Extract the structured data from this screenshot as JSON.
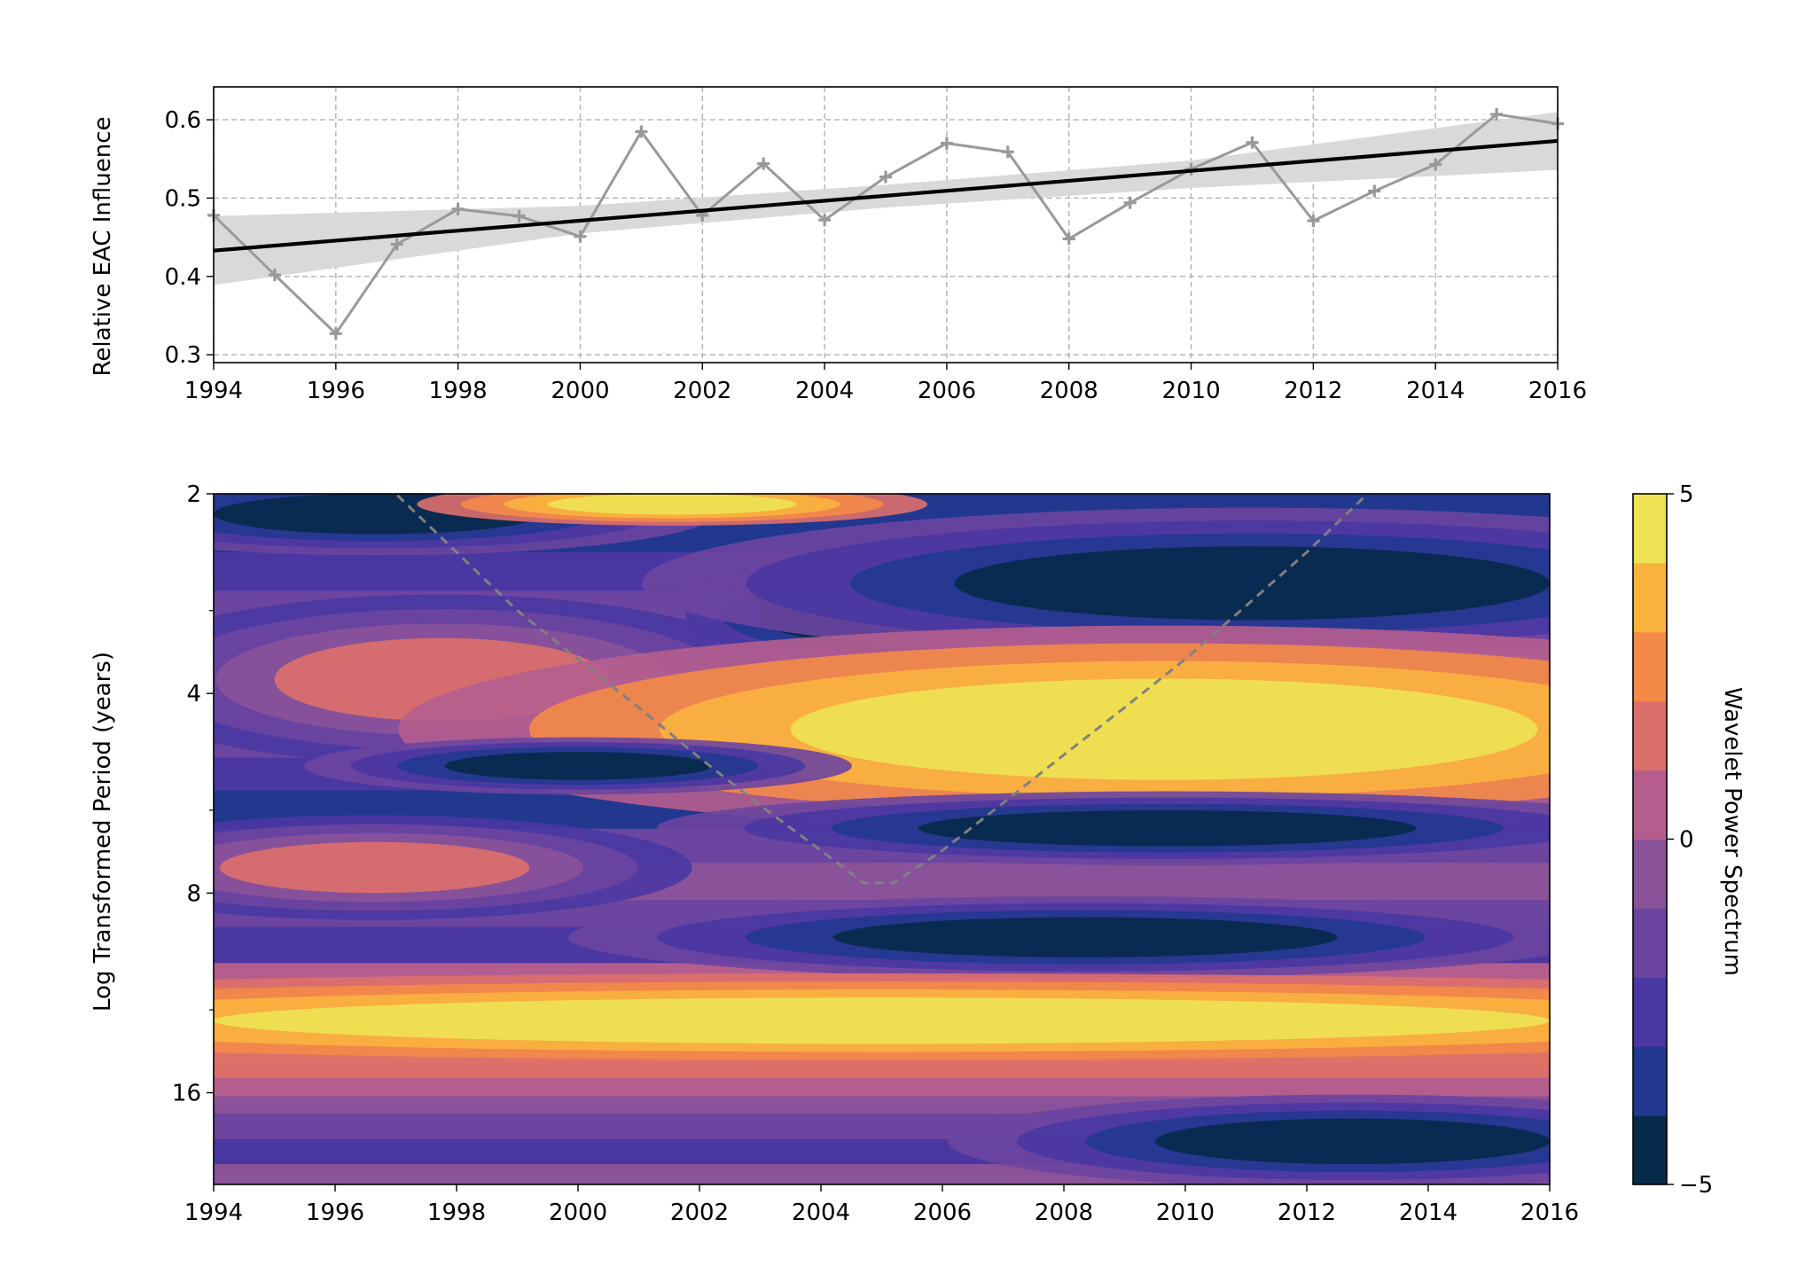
{
  "chart_data": [
    {
      "type": "line",
      "title": "",
      "xlabel": "",
      "ylabel": "Relative EAC Influence",
      "xlim": [
        1994,
        2016
      ],
      "ylim": [
        0.29,
        0.642
      ],
      "xticks": [
        "1994",
        "1996",
        "1998",
        "2000",
        "2002",
        "2004",
        "2006",
        "2008",
        "2010",
        "2012",
        "2014",
        "2016"
      ],
      "yticks": [
        "0.3",
        "0.4",
        "0.5",
        "0.6"
      ],
      "grid": true,
      "series": [
        {
          "kind": "observed",
          "color": "#999999",
          "marker": "plus",
          "x": [
            1994,
            1995,
            1996,
            1997,
            1998,
            1999,
            2000,
            2001,
            2002,
            2003,
            2004,
            2005,
            2006,
            2007,
            2008,
            2009,
            2010,
            2011,
            2012,
            2013,
            2014,
            2015,
            2016
          ],
          "y": [
            0.478,
            0.402,
            0.327,
            0.441,
            0.486,
            0.477,
            0.451,
            0.585,
            0.478,
            0.544,
            0.472,
            0.527,
            0.57,
            0.559,
            0.448,
            0.494,
            0.537,
            0.571,
            0.471,
            0.509,
            0.543,
            0.607,
            0.595
          ]
        },
        {
          "kind": "trend",
          "color": "#000000",
          "x": [
            1994,
            2016
          ],
          "y": [
            0.433,
            0.573
          ]
        }
      ],
      "confidence_band": {
        "color": "#d9d9d9",
        "x": [
          1994,
          2000,
          2005,
          2010,
          2016
        ],
        "lower": [
          0.389,
          0.455,
          0.488,
          0.513,
          0.536
        ],
        "upper": [
          0.477,
          0.49,
          0.517,
          0.548,
          0.61
        ]
      }
    },
    {
      "type": "heatmap",
      "title": "",
      "xlabel": "",
      "ylabel": "Log Transformed Period (years)",
      "xlim": [
        1994,
        2016
      ],
      "ylim": [
        2,
        22
      ],
      "y_scale": "log2",
      "y_inverted": true,
      "xticks": [
        "1994",
        "1996",
        "1998",
        "2000",
        "2002",
        "2004",
        "2006",
        "2008",
        "2010",
        "2012",
        "2014",
        "2016"
      ],
      "yticks": [
        "2",
        "4",
        "8",
        "16"
      ],
      "colorbar": {
        "label": "Wavelet Power Spectrum",
        "range": [
          -5,
          5
        ],
        "ticks": [
          "5",
          "0",
          "−5"
        ],
        "levels": [
          -5,
          -4,
          -3,
          -2,
          -1,
          0,
          1,
          2,
          3,
          4,
          5
        ],
        "colors": [
          "#082a4a",
          "#22388f",
          "#4a37a2",
          "#6b45a0",
          "#8a5299",
          "#b55e8e",
          "#dd6f6b",
          "#f48a48",
          "#f9b33f",
          "#ede354"
        ]
      },
      "cone_of_influence": {
        "style": "dashed",
        "color": "#808080",
        "x": [
          1994,
          1995,
          1996,
          1997,
          1998,
          1999,
          2000,
          2001,
          2002,
          2003,
          2004,
          2004.7,
          2005.2,
          2006,
          2007,
          2008,
          2009,
          2010,
          2011,
          2012,
          2013,
          2014,
          2015,
          2016
        ],
        "period": [
          1.1,
          1.25,
          1.5,
          2.0,
          2.45,
          3.0,
          3.55,
          4.2,
          5.0,
          5.9,
          6.9,
          7.72,
          7.72,
          6.9,
          5.85,
          4.95,
          4.2,
          3.55,
          2.95,
          2.45,
          2.0,
          1.6,
          1.3,
          1.1
        ]
      },
      "features": [
        {
          "x": [
            1994,
            1999.4
          ],
          "period": [
            2,
            2.3
          ],
          "power": -5
        },
        {
          "x": [
            1999.5,
            2003.6
          ],
          "period": [
            2,
            2.15
          ],
          "power": 5
        },
        {
          "x": [
            2003.0,
            2006.5
          ],
          "period": [
            2.8,
            3.35
          ],
          "power": -5
        },
        {
          "x": [
            2006.2,
            2016
          ],
          "period": [
            2.4,
            3.1
          ],
          "power": -5
        },
        {
          "x": [
            1995.0,
            2000.5
          ],
          "period": [
            3.3,
            4.4
          ],
          "power": 1
        },
        {
          "x": [
            2003.5,
            2015.8
          ],
          "period": [
            3.8,
            5.4
          ],
          "power": 4.5
        },
        {
          "x": [
            1997.8,
            2002.2
          ],
          "period": [
            4.9,
            5.4
          ],
          "power": -5
        },
        {
          "x": [
            2005.6,
            2013.8
          ],
          "period": [
            6.0,
            6.8
          ],
          "power": -5
        },
        {
          "x": [
            1994.1,
            1999.2
          ],
          "period": [
            6.7,
            8.0
          ],
          "power": 1
        },
        {
          "x": [
            2004.2,
            2012.5
          ],
          "period": [
            8.7,
            10.0
          ],
          "power": -5
        },
        {
          "x": [
            1994,
            2016
          ],
          "period": [
            11.5,
            13.5
          ],
          "power": 5
        },
        {
          "x": [
            2009.5,
            2016
          ],
          "period": [
            17.5,
            20.5
          ],
          "power": -5
        }
      ]
    }
  ]
}
